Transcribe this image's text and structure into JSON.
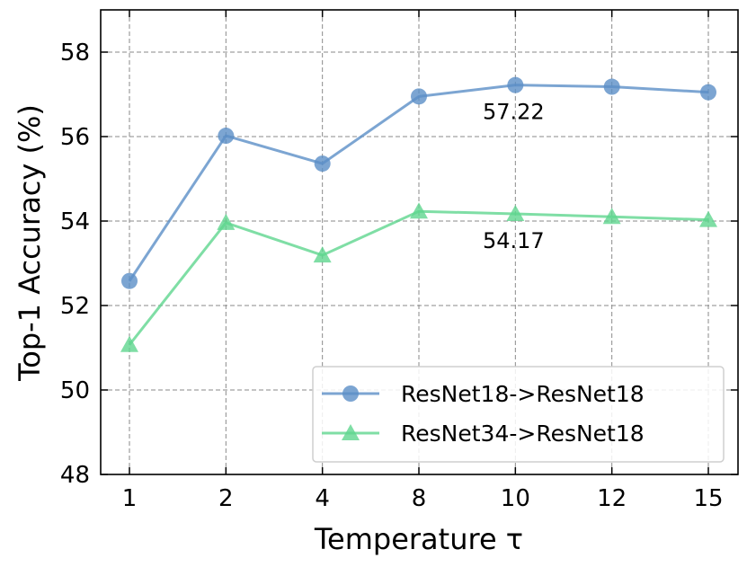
{
  "chart_data": {
    "type": "line",
    "xlabel": "Temperature τ",
    "ylabel": "Top-1 Accuracy (%)",
    "categories": [
      "1",
      "2",
      "4",
      "8",
      "10",
      "12",
      "15"
    ],
    "ylim": [
      48,
      59
    ],
    "yticks": [
      "48",
      "50",
      "52",
      "54",
      "56",
      "58"
    ],
    "grid": true,
    "legend_position": "bottom-right",
    "series": [
      {
        "name": "ResNet18->ResNet18",
        "marker": "circle",
        "color": "#5b8fc7",
        "values": [
          52.58,
          56.02,
          55.36,
          56.95,
          57.22,
          57.18,
          57.05
        ]
      },
      {
        "name": "ResNet34->ResNet18",
        "marker": "triangle",
        "color": "#5fd68f",
        "values": [
          51.07,
          53.96,
          53.19,
          54.23,
          54.17,
          54.1,
          54.03
        ]
      }
    ],
    "annotations": [
      {
        "text": "57.22",
        "series": 0,
        "index": 4
      },
      {
        "text": "54.17",
        "series": 1,
        "index": 4
      }
    ]
  }
}
